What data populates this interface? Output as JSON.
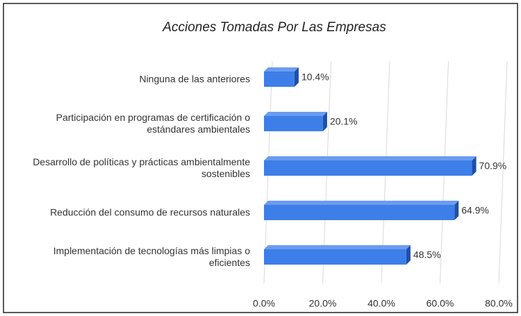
{
  "chart_data": {
    "type": "bar",
    "orientation": "horizontal",
    "title": "Acciones Tomadas Por Las Empresas",
    "categories": [
      "Ninguna de las anteriores",
      "Participación en programas de certificación o estándares ambientales",
      "Desarrollo de políticas y prácticas ambientalmente sostenibles",
      "Reducción del consumo de recursos naturales",
      "Implementación de tecnologías más limpias o eficientes"
    ],
    "values": [
      10.4,
      20.1,
      70.9,
      64.9,
      48.5
    ],
    "value_labels": [
      "10.4%",
      "20.1%",
      "70.9%",
      "64.9%",
      "48.5%"
    ],
    "color": "#3d7ee8",
    "xlim": [
      0,
      80
    ],
    "xticks": [
      {
        "value": 0,
        "label": "0.0%"
      },
      {
        "value": 20,
        "label": "20.0%"
      },
      {
        "value": 40,
        "label": "40.0%"
      },
      {
        "value": 60,
        "label": "60.0%"
      },
      {
        "value": 80,
        "label": "80.0%"
      }
    ],
    "grid": true
  }
}
